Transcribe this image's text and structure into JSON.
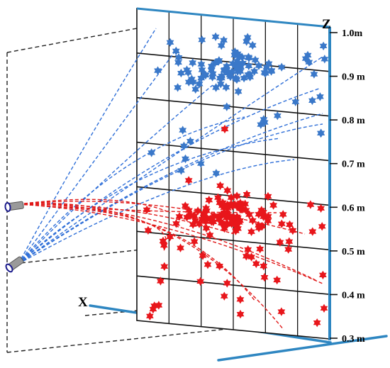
{
  "axes": {
    "x_label": "X",
    "z_label": "Z"
  },
  "z_scale": {
    "ticks": [
      "0.3 m",
      "0.4 m",
      "0.5 m",
      "0.6 m",
      "0.7 m",
      "0.8 m",
      "0.9 m",
      "1.0m"
    ]
  },
  "colors": {
    "upper_group": "#3a78c9",
    "lower_group": "#e8161b",
    "upper_trace": "#2f6fd8",
    "lower_trace": "#e01818",
    "axis_blue": "#2e86c1",
    "frame": "#111111",
    "lamp_body": "#9a9a9a",
    "lamp_ring": "#1a1a8c"
  },
  "icons": {
    "marker": "six-point-star-icon",
    "emitter": "camera-lamp-icon"
  },
  "groups": [
    {
      "name": "",
      "color": "upper_group"
    },
    {
      "name": "",
      "color": "lower_group"
    }
  ]
}
